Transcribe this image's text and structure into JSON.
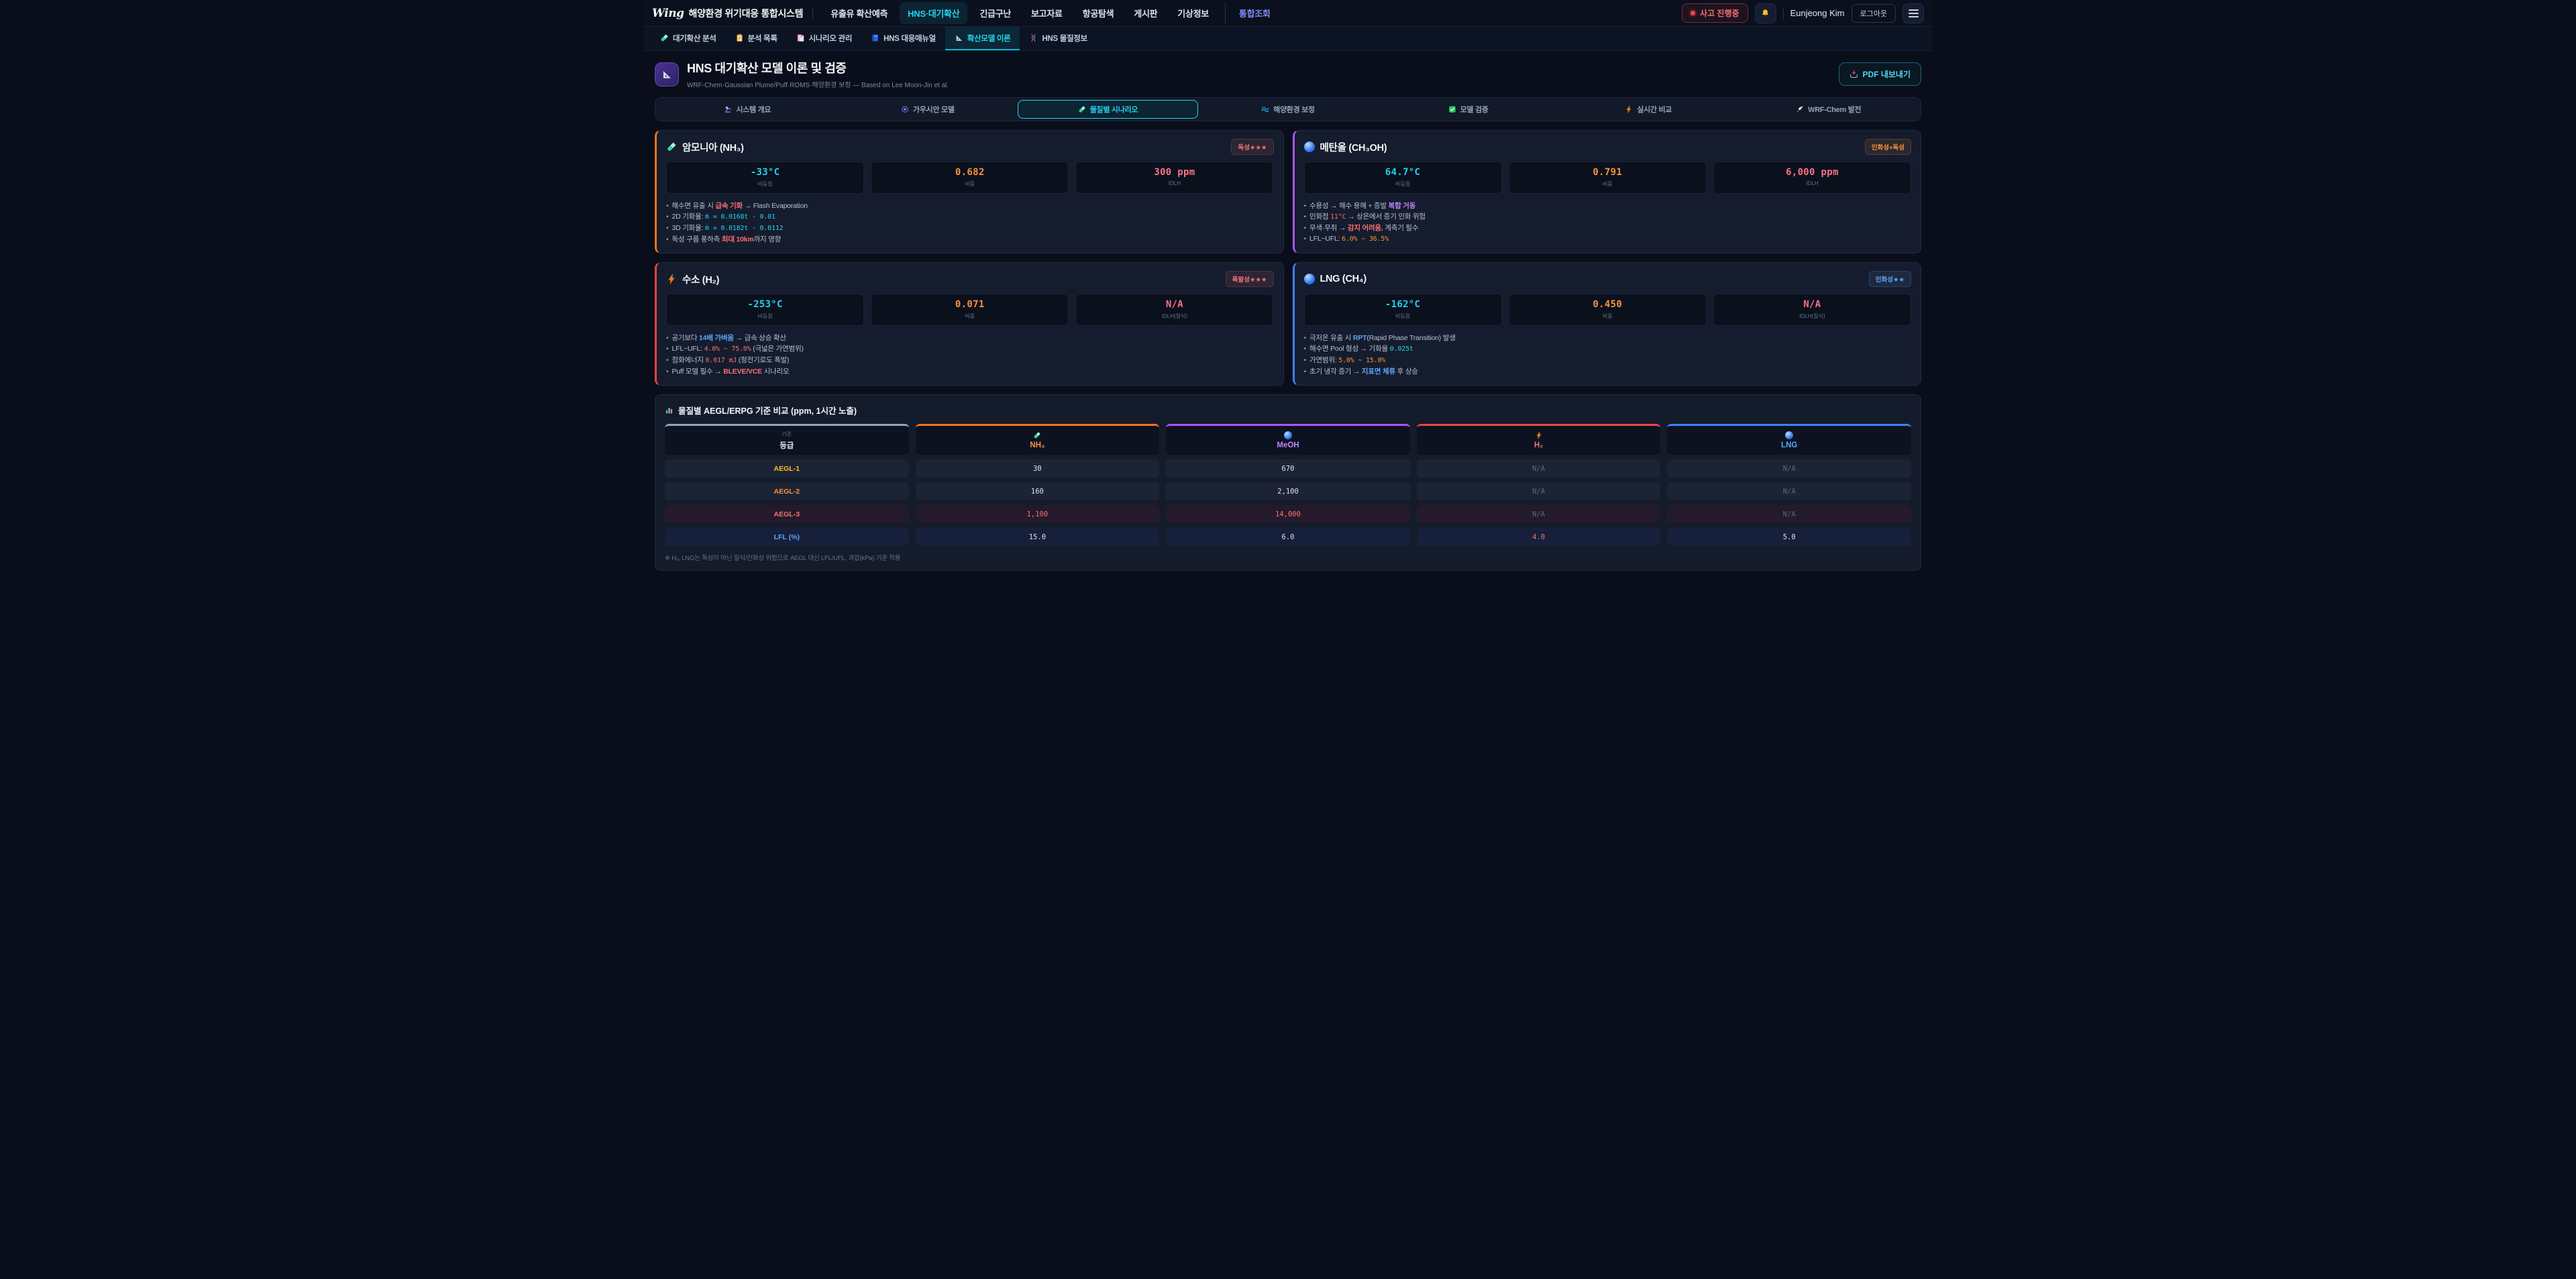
{
  "topnav": {
    "logo": "Wing",
    "brand": "해양환경 위기대응 통합시스템",
    "items": [
      {
        "label": "유출유 확산예측"
      },
      {
        "label": "HNS·대기확산",
        "active": true
      },
      {
        "label": "긴급구난"
      },
      {
        "label": "보고자료"
      },
      {
        "label": "항공탐색"
      },
      {
        "label": "게시판"
      },
      {
        "label": "기상정보"
      },
      {
        "label": "통합조회",
        "accent": true
      }
    ],
    "incident_badge": "사고 진행중",
    "user": "Eunjeong Kim",
    "logout": "로그아웃"
  },
  "subnav": [
    {
      "icon": "test-tube-icon",
      "label": "대기확산 분석"
    },
    {
      "icon": "clipboard-icon",
      "label": "분석 목록"
    },
    {
      "icon": "bookmark-tabs-icon",
      "label": "시나리오 관리"
    },
    {
      "icon": "book-icon",
      "label": "HNS 대응매뉴얼"
    },
    {
      "icon": "triangle-ruler-icon",
      "label": "확산모델 이론",
      "active": true
    },
    {
      "icon": "dna-icon",
      "label": "HNS 물질정보"
    }
  ],
  "header": {
    "title": "HNS 대기확산 모델 이론 및 검증",
    "subtitle": "WRF-Chem·Gaussian Plume/Puff·ROMS·해양환경 보정 — Based on Lee Moon-Jin et al.",
    "export_label": "PDF 내보내기"
  },
  "section_tabs": [
    {
      "icon": "microscope-icon",
      "label": "시스템 개요"
    },
    {
      "icon": "spiral-icon",
      "label": "가우시안 모델"
    },
    {
      "icon": "test-tube-icon",
      "label": "물질별 시나리오",
      "active": true
    },
    {
      "icon": "wave-icon",
      "label": "해양환경 보정"
    },
    {
      "icon": "check-icon",
      "label": "모델 검증"
    },
    {
      "icon": "bolt-icon",
      "label": "실시간 비교"
    },
    {
      "icon": "rocket-icon",
      "label": "WRF-Chem 발전"
    }
  ],
  "cards": [
    {
      "id": "nh3",
      "icon": "test-tube-icon",
      "title": "암모니아 (NH₃)",
      "accent": "#f97316",
      "badge": {
        "text": "독성★★★",
        "color": "#f87171",
        "bg": "rgba(248,113,113,0.10)"
      },
      "stats": [
        {
          "value": "-33°C",
          "label": "비등점",
          "color": "#22d3ee"
        },
        {
          "value": "0.682",
          "label": "비중",
          "color": "#fb923c"
        },
        {
          "value": "300 ppm",
          "label": "IDLH",
          "color": "#fb7185"
        }
      ],
      "bullets": [
        [
          {
            "t": "해수면 유출 시 "
          },
          {
            "t": "급속 기화",
            "s": "hl-red"
          },
          {
            "t": " → Flash Evaporation"
          }
        ],
        [
          {
            "t": "2D 기화율: "
          },
          {
            "t": "ṁ = 0.0168t - 0.01",
            "s": "code-cyan"
          }
        ],
        [
          {
            "t": "3D 기화율: "
          },
          {
            "t": "ṁ = 0.0182t - 0.0112",
            "s": "code-cyan"
          }
        ],
        [
          {
            "t": "독성 구름 풍하측 "
          },
          {
            "t": "최대 10km",
            "s": "hl-red"
          },
          {
            "t": "까지 영향"
          }
        ]
      ]
    },
    {
      "id": "meoh",
      "icon": "sphere-icon",
      "title": "메탄올 (CH₃OH)",
      "accent": "#a855f7",
      "badge": {
        "text": "인화성+독성",
        "color": "#fb923c",
        "bg": "rgba(251,146,60,0.10)"
      },
      "stats": [
        {
          "value": "64.7°C",
          "label": "비등점",
          "color": "#22d3ee"
        },
        {
          "value": "0.791",
          "label": "비중",
          "color": "#fb923c"
        },
        {
          "value": "6,000 ppm",
          "label": "IDLH",
          "color": "#fb7185"
        }
      ],
      "bullets": [
        [
          {
            "t": "수용성 → 해수 용해 + 증발 "
          },
          {
            "t": "복합 거동",
            "s": "hl-purple"
          }
        ],
        [
          {
            "t": "인화점 "
          },
          {
            "t": "11°C",
            "s": "code-red"
          },
          {
            "t": " → 상온에서 증기 인화 위험"
          }
        ],
        [
          {
            "t": "무색·무취 → "
          },
          {
            "t": "감지 어려움,",
            "s": "hl-red"
          },
          {
            "t": " 계측기 필수"
          }
        ],
        [
          {
            "t": "LFL~UFL: "
          },
          {
            "t": "6.0% ~ 36.5%",
            "s": "code-orange"
          }
        ]
      ]
    },
    {
      "id": "h2",
      "icon": "bolt-icon",
      "title": "수소 (H₂)",
      "accent": "#ef4444",
      "badge": {
        "text": "폭발성★★★",
        "color": "#f87171",
        "bg": "rgba(248,113,113,0.10)"
      },
      "stats": [
        {
          "value": "-253°C",
          "label": "비등점",
          "color": "#22d3ee"
        },
        {
          "value": "0.071",
          "label": "비중",
          "color": "#fb923c"
        },
        {
          "value": "N/A",
          "label": "IDLH(질식)",
          "color": "#fb7185"
        }
      ],
      "bullets": [
        [
          {
            "t": "공기보다 "
          },
          {
            "t": "14배 가벼움",
            "s": "hl-blue"
          },
          {
            "t": " → 급속 상승 확산"
          }
        ],
        [
          {
            "t": "LFL~UFL: "
          },
          {
            "t": "4.0% ~ 75.0%",
            "s": "code-red"
          },
          {
            "t": " (극넓은 가연범위)"
          }
        ],
        [
          {
            "t": "점화에너지 "
          },
          {
            "t": "0.017 mJ",
            "s": "code-red"
          },
          {
            "t": " (정전기로도 폭발)"
          }
        ],
        [
          {
            "t": "Puff 모델 필수 → "
          },
          {
            "t": "BLEVE/VCE",
            "s": "hl-red"
          },
          {
            "t": " 시나리오"
          }
        ]
      ]
    },
    {
      "id": "lng",
      "icon": "sphere-icon",
      "title": "LNG (CH₄)",
      "accent": "#3b82f6",
      "badge": {
        "text": "인화성★★",
        "color": "#60a5fa",
        "bg": "rgba(96,165,250,0.10)"
      },
      "stats": [
        {
          "value": "-162°C",
          "label": "비등점",
          "color": "#22d3ee"
        },
        {
          "value": "0.450",
          "label": "비중",
          "color": "#fb923c"
        },
        {
          "value": "N/A",
          "label": "IDLH(질식)",
          "color": "#fb7185"
        }
      ],
      "bullets": [
        [
          {
            "t": "극저온 유출 시 "
          },
          {
            "t": "RPT",
            "s": "hl-blue"
          },
          {
            "t": "(Rapid Phase Transition) 발생"
          }
        ],
        [
          {
            "t": "해수면 Pool 형성 → 기화율 "
          },
          {
            "t": "0.025t",
            "s": "code-cyan"
          }
        ],
        [
          {
            "t": "가연범위: "
          },
          {
            "t": "5.0% ~ 15.0%",
            "s": "code-orange"
          }
        ],
        [
          {
            "t": "초기 냉각 증기 → "
          },
          {
            "t": "지표면 체류",
            "s": "hl-blue"
          },
          {
            "t": " 후 상승"
          }
        ]
      ]
    }
  ],
  "table": {
    "title": "물질별 AEGL/ERPG 기준 비교 (ppm, 1시간 노출)",
    "columns": [
      {
        "top": "기준",
        "label": "등급",
        "accent": "#94a3b8",
        "color": "#e2e8f0"
      },
      {
        "label": "NH₃",
        "icon": "test-tube-icon",
        "accent": "#f97316",
        "color": "#fb923c"
      },
      {
        "label": "MeOH",
        "icon": "sphere-icon",
        "accent": "#a855f7",
        "color": "#c084fc"
      },
      {
        "label": "H₂",
        "icon": "bolt-icon",
        "accent": "#ef4444",
        "color": "#f87171"
      },
      {
        "label": "LNG",
        "icon": "sphere-icon",
        "accent": "#3b82f6",
        "color": "#60a5fa"
      }
    ],
    "rows": [
      {
        "label": "AEGL-1",
        "label_color": "#fbbf24",
        "tint": "gray",
        "cells": [
          {
            "v": "30"
          },
          {
            "v": "670"
          },
          {
            "v": "N/A",
            "muted": true
          },
          {
            "v": "N/A",
            "muted": true
          }
        ]
      },
      {
        "label": "AEGL-2",
        "label_color": "#fb923c",
        "tint": "gray",
        "cells": [
          {
            "v": "160"
          },
          {
            "v": "2,100"
          },
          {
            "v": "N/A",
            "muted": true
          },
          {
            "v": "N/A",
            "muted": true
          }
        ]
      },
      {
        "label": "AEGL-3",
        "label_color": "#f87171",
        "tint": "red",
        "cells": [
          {
            "v": "1,100",
            "color": "#f87171"
          },
          {
            "v": "14,000",
            "color": "#f87171"
          },
          {
            "v": "N/A",
            "muted": true
          },
          {
            "v": "N/A",
            "muted": true
          }
        ]
      },
      {
        "label": "LFL (%)",
        "label_color": "#60a5fa",
        "tint": "blue",
        "cells": [
          {
            "v": "15.0"
          },
          {
            "v": "6.0"
          },
          {
            "v": "4.0",
            "color": "#f87171"
          },
          {
            "v": "5.0"
          }
        ]
      }
    ],
    "footnote": "※ H₂, LNG는 독성이 아닌 질식/인화성 위험으로 AEGL 대신 LFL/UFL, 과압(kPa) 기준 적용"
  }
}
